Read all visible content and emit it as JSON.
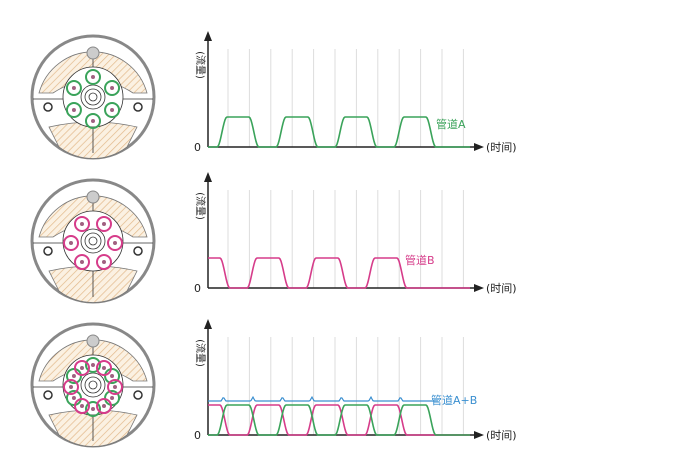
{
  "colors": {
    "pipe_a": "#3aa35a",
    "pipe_b": "#d63c8a",
    "pipe_ab": "#3a8fd0",
    "axis": "#222222",
    "grid": "#dddddd",
    "hatch": "#e8c9a0"
  },
  "panels": [
    {
      "y_label": "(流量)",
      "x_label": "(时间)",
      "origin": "0",
      "series_label": "管道A"
    },
    {
      "y_label": "(流量)",
      "x_label": "(时间)",
      "origin": "0",
      "series_label": "管道B"
    },
    {
      "y_label": "(流量)",
      "x_label": "(时间)",
      "origin": "0",
      "series_label": "管道A+B"
    }
  ]
}
